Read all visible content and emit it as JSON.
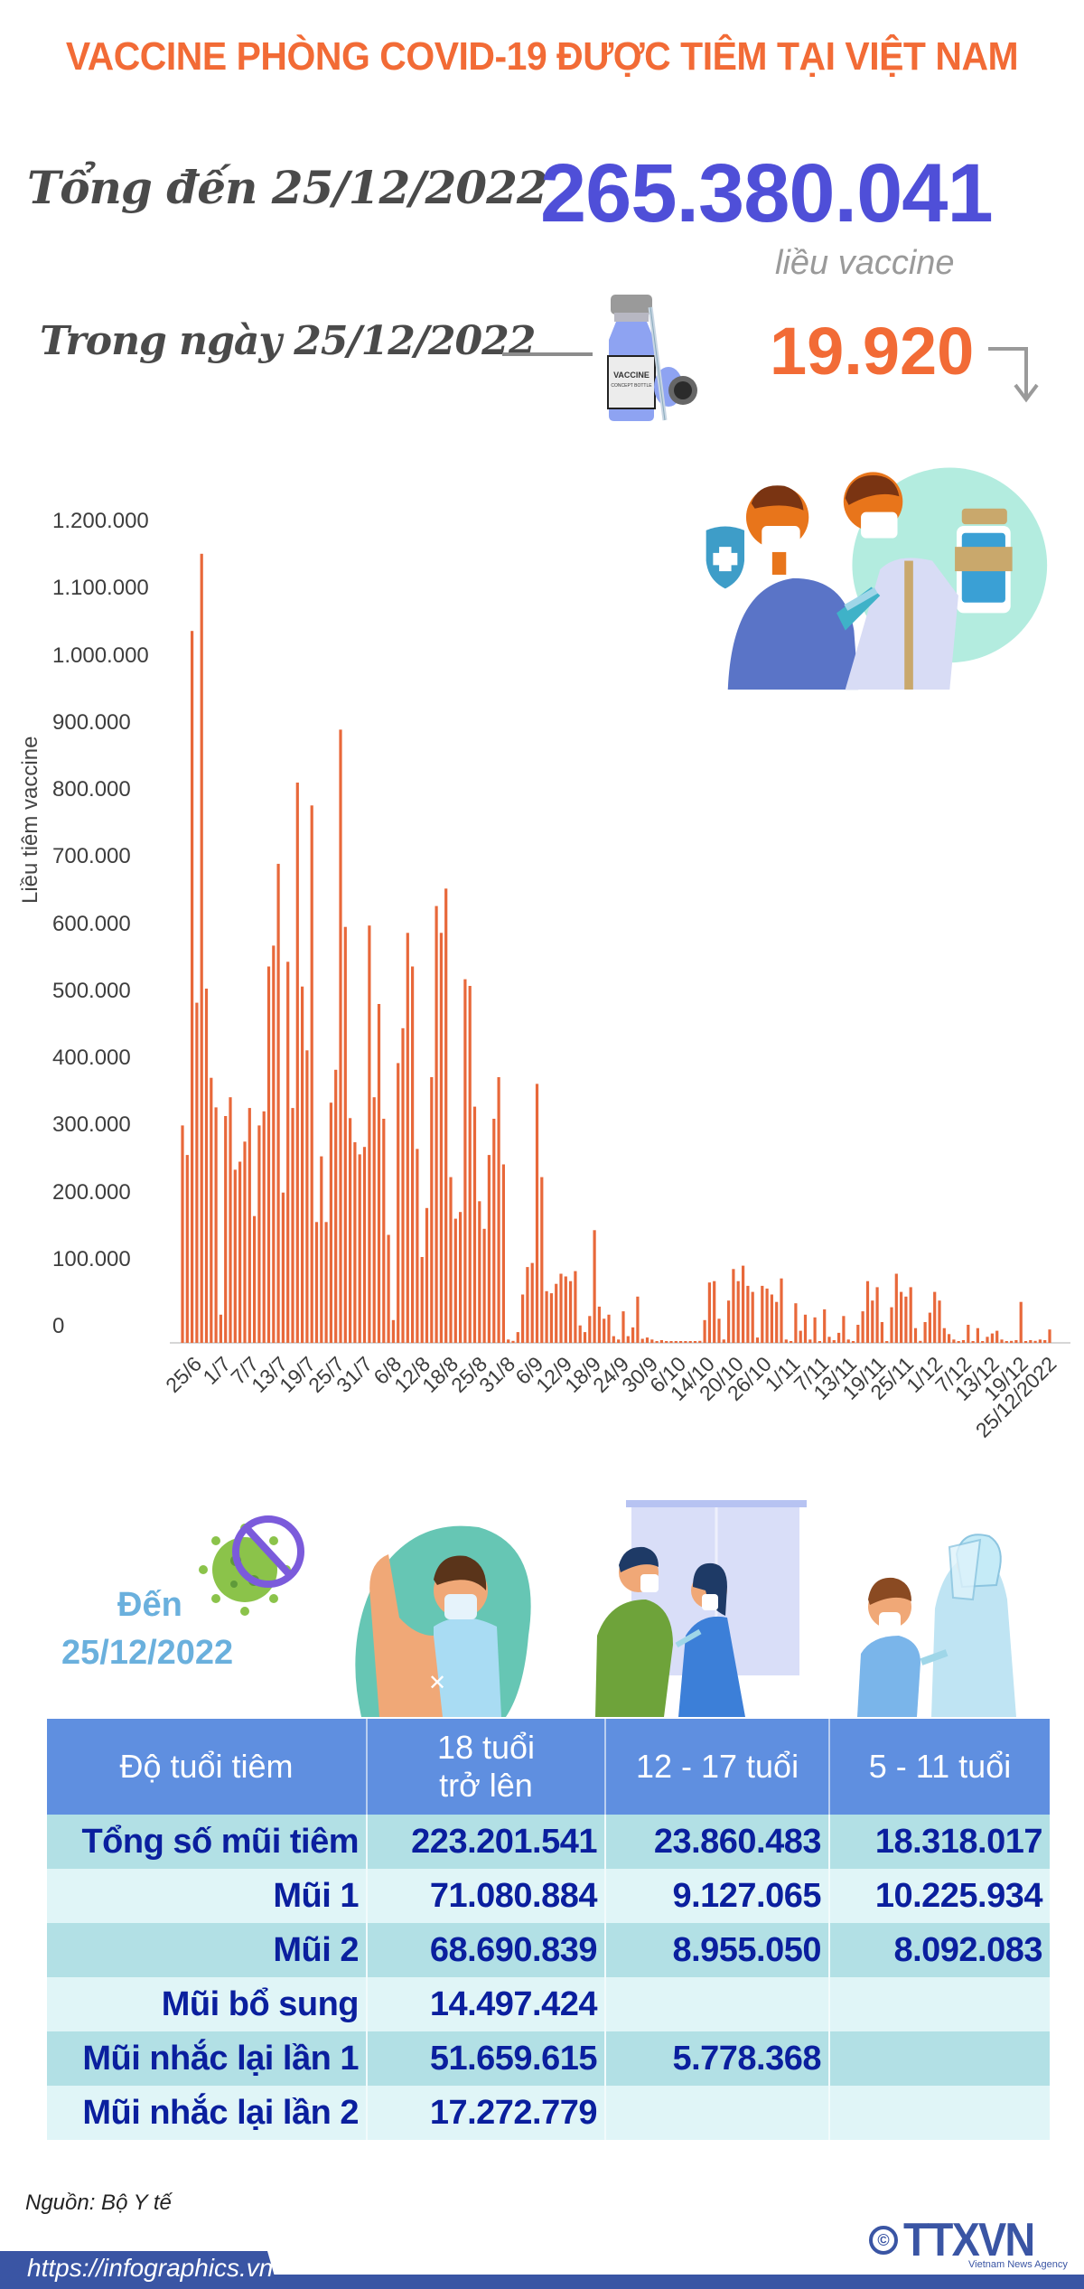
{
  "header": {
    "title": "VACCINE PHÒNG COVID-19 ĐƯỢC TIÊM TẠI VIỆT NAM"
  },
  "summary": {
    "total_label": "Tổng đến 25/12/2022",
    "total_value": "265.380.041",
    "total_unit": "liều vaccine",
    "day_label": "Trong ngày 25/12/2022",
    "day_value": "19.920",
    "day_trend": "down",
    "vial_label_1": "VACCINE",
    "vial_label_2": "CONCEPT BOTTLE"
  },
  "colors": {
    "title": "#f26b36",
    "total_value": "#4f4fd8",
    "day_value": "#f26b36",
    "bar": "#e8683a",
    "table_header": "#5f8fe0",
    "table_row_dark": "#b2e0e5",
    "table_row_light": "#e0f5f7",
    "table_text": "#0a1f9e",
    "den_text": "#6ab0dd",
    "footer": "#3a55a4"
  },
  "chart_data": {
    "type": "bar",
    "title": "",
    "xlabel": "",
    "ylabel": "Liều tiêm vaccine",
    "ylim": [
      0,
      1200000
    ],
    "yticks": [
      "0",
      "100.000",
      "200.000",
      "300.000",
      "400.000",
      "500.000",
      "600.000",
      "700.000",
      "800.000",
      "900.000",
      "1.000.000",
      "1.100.000",
      "1.200.000"
    ],
    "ytick_values": [
      0,
      100000,
      200000,
      300000,
      400000,
      500000,
      600000,
      700000,
      800000,
      900000,
      1000000,
      1100000,
      1200000
    ],
    "grid": false,
    "legend": null,
    "x_start": "25/6/2022",
    "x_end": "25/12/2022",
    "xtick_labels": [
      "25/6",
      "1/7",
      "7/7",
      "13/7",
      "19/7",
      "25/7",
      "31/7",
      "6/8",
      "12/8",
      "18/8",
      "25/8",
      "31/8",
      "6/9",
      "12/9",
      "18/9",
      "24/9",
      "30/9",
      "6/10",
      "14/10",
      "20/10",
      "26/10",
      "1/11",
      "7/11",
      "13/11",
      "19/11",
      "25/11",
      "1/12",
      "7/12",
      "13/12",
      "19/12",
      "25/12/2022"
    ],
    "series": [
      {
        "name": "Liều tiêm vaccine",
        "values": [
          324000,
          280000,
          1061000,
          507000,
          1176000,
          528000,
          395000,
          351000,
          42000,
          338000,
          366000,
          258000,
          270000,
          300000,
          350000,
          189000,
          324000,
          345000,
          561000,
          592000,
          714000,
          224000,
          568000,
          350000,
          835000,
          531000,
          436000,
          801000,
          180000,
          278000,
          180000,
          358000,
          407000,
          914000,
          620000,
          335000,
          299000,
          281000,
          292000,
          622000,
          366000,
          505000,
          334000,
          161000,
          34000,
          417000,
          469000,
          611000,
          561000,
          289000,
          128000,
          201000,
          396000,
          651000,
          611000,
          677000,
          247000,
          185000,
          195000,
          542000,
          532000,
          352000,
          211000,
          170000,
          280000,
          334000,
          396000,
          266000,
          5000,
          3000,
          16000,
          72000,
          113000,
          119000,
          386000,
          247000,
          77000,
          74000,
          88000,
          103000,
          99000,
          92000,
          107000,
          26000,
          16000,
          40000,
          168000,
          54000,
          36000,
          42000,
          10000,
          5000,
          47000,
          10000,
          23000,
          69000,
          6000,
          8000,
          5000,
          2000,
          4000,
          2000,
          1000,
          1000,
          1000,
          1000,
          1000,
          2000,
          3000,
          34000,
          90000,
          92000,
          36000,
          5000,
          63000,
          110000,
          92000,
          115000,
          85000,
          76000,
          8000,
          85000,
          81000,
          72000,
          61000,
          96000,
          5000,
          2000,
          59000,
          18000,
          42000,
          5000,
          38000,
          2000,
          50000,
          9000,
          4000,
          15000,
          40000,
          5000,
          2000,
          27000,
          47000,
          92000,
          63000,
          83000,
          31000,
          1000,
          53000,
          103000,
          76000,
          69000,
          83000,
          22000,
          3000,
          31000,
          45000,
          76000,
          63000,
          22000,
          13000,
          5000,
          2000,
          4000,
          27000,
          2000,
          22000,
          2000,
          9000,
          14000,
          18000,
          5000,
          2000,
          3000,
          4000,
          61000,
          2000,
          4000,
          3000,
          5000,
          4000,
          19920
        ]
      }
    ]
  },
  "section2": {
    "den_label": "Đến",
    "den_date": "25/12/2022"
  },
  "table": {
    "headers": [
      "Độ tuổi tiêm",
      "18 tuổi\ntrở lên",
      "12 - 17 tuổi",
      "5 - 11 tuổi"
    ],
    "header_18_line1": "18 tuổi",
    "header_18_line2": "trở lên",
    "rows": [
      {
        "label": "Tổng số mũi tiêm",
        "values": [
          "223.201.541",
          "23.860.483",
          "18.318.017"
        ]
      },
      {
        "label": "Mũi 1",
        "values": [
          "71.080.884",
          "9.127.065",
          "10.225.934"
        ]
      },
      {
        "label": "Mũi 2",
        "values": [
          "68.690.839",
          "8.955.050",
          "8.092.083"
        ]
      },
      {
        "label": "Mũi bổ sung",
        "values": [
          "14.497.424",
          "",
          ""
        ]
      },
      {
        "label": "Mũi nhắc lại lần 1",
        "values": [
          "51.659.615",
          "5.778.368",
          ""
        ]
      },
      {
        "label": "Mũi nhắc lại lần 2",
        "values": [
          "17.272.779",
          "",
          ""
        ]
      }
    ]
  },
  "footer": {
    "source": "Nguồn: Bộ Y tế",
    "url": "https://infographics.vn",
    "logo_copyright": "©",
    "logo_text": "TTXVN",
    "logo_sub": "Vietnam News Agency"
  }
}
